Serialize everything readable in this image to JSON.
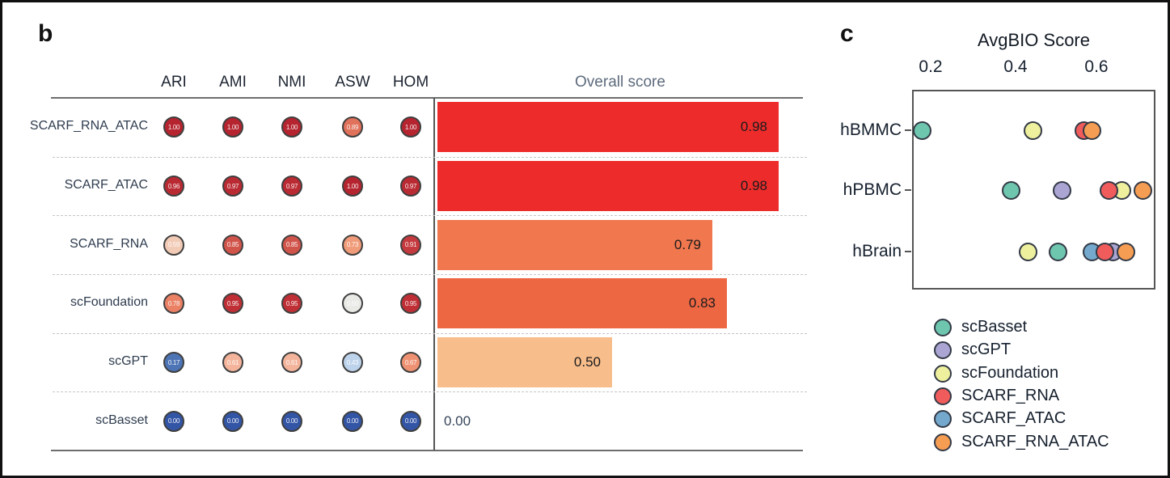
{
  "panel_b": {
    "label": "b",
    "columns": [
      "ARI",
      "AMI",
      "NMI",
      "ASW",
      "HOM"
    ],
    "overall_header": "Overall score",
    "rows": [
      {
        "name": "SCARF_RNA_ATAC",
        "dots": [
          {
            "value": "1.00",
            "color": "#b5242f"
          },
          {
            "value": "1.00",
            "color": "#b5242f"
          },
          {
            "value": "1.00",
            "color": "#b5242f"
          },
          {
            "value": "0.89",
            "color": "#e0715a"
          },
          {
            "value": "1.00",
            "color": "#b5242f"
          }
        ],
        "overall": {
          "label": "0.98",
          "value": 0.98,
          "color": "#ee2b2b"
        }
      },
      {
        "name": "SCARF_ATAC",
        "dots": [
          {
            "value": "0.96",
            "color": "#ba2a33"
          },
          {
            "value": "0.97",
            "color": "#ba2a33"
          },
          {
            "value": "0.97",
            "color": "#ba2a33"
          },
          {
            "value": "1.00",
            "color": "#b5242f"
          },
          {
            "value": "0.97",
            "color": "#ba2a33"
          }
        ],
        "overall": {
          "label": "0.98",
          "value": 0.98,
          "color": "#ee2b2b"
        }
      },
      {
        "name": "SCARF_RNA",
        "dots": [
          {
            "value": "0.59",
            "color": "#f2cbb6"
          },
          {
            "value": "0.85",
            "color": "#d1544b"
          },
          {
            "value": "0.85",
            "color": "#d1544b"
          },
          {
            "value": "0.73",
            "color": "#f09b79"
          },
          {
            "value": "0.91",
            "color": "#c43a3e"
          }
        ],
        "overall": {
          "label": "0.79",
          "value": 0.79,
          "color": "#f0774e"
        }
      },
      {
        "name": "scFoundation",
        "dots": [
          {
            "value": "0.78",
            "color": "#ea8164"
          },
          {
            "value": "0.95",
            "color": "#bf2f35"
          },
          {
            "value": "0.95",
            "color": "#bf2f35"
          },
          {
            "value": "0.50",
            "color": "#e9e9e6"
          },
          {
            "value": "0.95",
            "color": "#bf2f35"
          }
        ],
        "overall": {
          "label": "0.83",
          "value": 0.83,
          "color": "#ed6743"
        }
      },
      {
        "name": "scGPT",
        "dots": [
          {
            "value": "0.17",
            "color": "#4d74b5"
          },
          {
            "value": "0.61",
            "color": "#f3b49b"
          },
          {
            "value": "0.61",
            "color": "#f3b49b"
          },
          {
            "value": "0.43",
            "color": "#bdd3eb"
          },
          {
            "value": "0.67",
            "color": "#ef9273"
          }
        ],
        "overall": {
          "label": "0.50",
          "value": 0.5,
          "color": "#f7bd8b"
        }
      },
      {
        "name": "scBasset",
        "dots": [
          {
            "value": "0.00",
            "color": "#3355a6"
          },
          {
            "value": "0.00",
            "color": "#3355a6"
          },
          {
            "value": "0.00",
            "color": "#3355a6"
          },
          {
            "value": "0.00",
            "color": "#3355a6"
          },
          {
            "value": "0.00",
            "color": "#3355a6"
          }
        ],
        "overall": {
          "label": "0.00",
          "value": 0.0,
          "color": null
        }
      }
    ]
  },
  "panel_c": {
    "label": "c",
    "axis_title": "AvgBIO Score",
    "x_ticks": [
      "0.2",
      "0.4",
      "0.6"
    ],
    "categories": [
      "hBMMC",
      "hPBMC",
      "hBrain"
    ],
    "series": [
      {
        "name": "scBasset",
        "color": "#6ec6ae",
        "z": 1,
        "values": [
          0.18,
          0.39,
          0.5
        ]
      },
      {
        "name": "scGPT",
        "color": "#aaa5d3",
        "z": 2,
        "values": [
          null,
          0.51,
          0.63
        ]
      },
      {
        "name": "scFoundation",
        "color": "#eef09e",
        "z": 3,
        "values": [
          0.44,
          0.65,
          0.43
        ]
      },
      {
        "name": "SCARF_RNA",
        "color": "#f05c5c",
        "z": 5,
        "values": [
          0.56,
          0.62,
          0.61
        ]
      },
      {
        "name": "SCARF_ATAC",
        "color": "#74a8cc",
        "z": 4,
        "values": [
          null,
          null,
          0.58
        ]
      },
      {
        "name": "SCARF_RNA_ATAC",
        "color": "#f59d52",
        "z": 6,
        "values": [
          0.58,
          0.7,
          0.66
        ]
      }
    ]
  },
  "chart_data": [
    {
      "type": "heatmap",
      "panel": "b",
      "columns": [
        "ARI",
        "AMI",
        "NMI",
        "ASW",
        "HOM"
      ],
      "rows": [
        "SCARF_RNA_ATAC",
        "SCARF_ATAC",
        "SCARF_RNA",
        "scFoundation",
        "scGPT",
        "scBasset"
      ],
      "values": [
        [
          1.0,
          1.0,
          1.0,
          0.89,
          1.0
        ],
        [
          0.96,
          0.97,
          0.97,
          1.0,
          0.97
        ],
        [
          0.59,
          0.85,
          0.85,
          0.73,
          0.91
        ],
        [
          0.78,
          0.95,
          0.95,
          0.5,
          0.95
        ],
        [
          0.17,
          0.61,
          0.61,
          0.43,
          0.67
        ],
        [
          0.0,
          0.0,
          0.0,
          0.0,
          0.0
        ]
      ],
      "colormap": "red = high, blue = low, white = 0.5",
      "bar": {
        "type": "bar",
        "title": "Overall score",
        "orientation": "horizontal",
        "values": [
          0.98,
          0.98,
          0.79,
          0.83,
          0.5,
          0.0
        ],
        "xlim": [
          0,
          1
        ]
      }
    },
    {
      "type": "scatter",
      "panel": "c",
      "title": "AvgBIO Score",
      "axis_position": "top",
      "categories": [
        "hBMMC",
        "hPBMC",
        "hBrain"
      ],
      "x_ticks": [
        0.2,
        0.4,
        0.6
      ],
      "xlim": [
        0.15,
        0.73
      ],
      "legend_position": "bottom-left",
      "series": [
        {
          "name": "scBasset",
          "values": [
            0.18,
            0.39,
            0.5
          ]
        },
        {
          "name": "scGPT",
          "values": [
            null,
            0.51,
            0.63
          ]
        },
        {
          "name": "scFoundation",
          "values": [
            0.44,
            0.65,
            0.43
          ]
        },
        {
          "name": "SCARF_RNA",
          "values": [
            0.56,
            0.62,
            0.61
          ]
        },
        {
          "name": "SCARF_ATAC",
          "values": [
            null,
            null,
            0.58
          ]
        },
        {
          "name": "SCARF_RNA_ATAC",
          "values": [
            0.58,
            0.7,
            0.66
          ]
        }
      ]
    }
  ]
}
